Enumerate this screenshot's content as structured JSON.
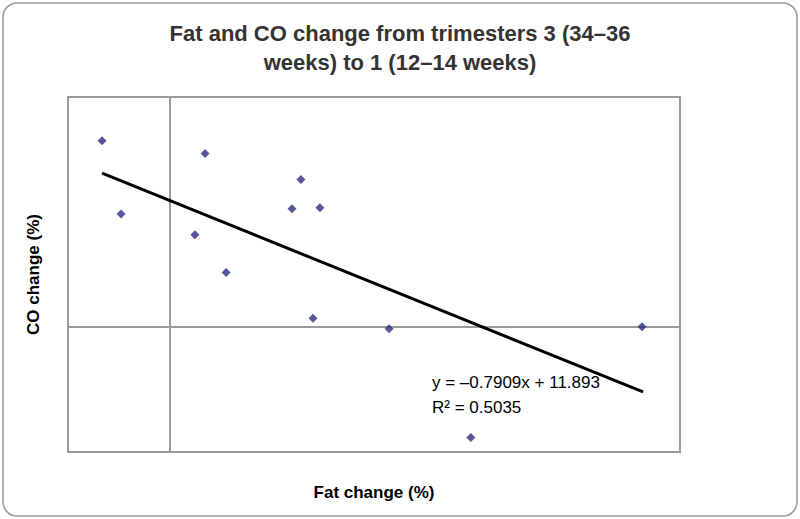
{
  "chart_data": {
    "type": "scatter",
    "title": "Fat and CO change from trimesters 3 (34–36\nweeks) to 1 (12–14 weeks)",
    "x_label": "Fat change (%)",
    "y_label": "CO change (%)",
    "x": [
      -3.33,
      -2.4,
      1.72,
      1.22,
      2.75,
      5.98,
      6.42,
      7.35,
      7.01,
      10.74,
      14.75,
      23.14
    ],
    "values": [
      17.8,
      10.8,
      16.6,
      8.8,
      5.2,
      11.3,
      14.1,
      11.4,
      0.8,
      -0.2,
      -10.6,
      0.0
    ],
    "color": "#2b2d7f",
    "marker": "diamond",
    "trend_line": {
      "x": [
        -3.33,
        23.19
      ],
      "y": [
        14.7,
        -6.25
      ],
      "color": "#000000",
      "line_style": "solid"
    },
    "annotations": [
      "y = –0.7909x + 11.893",
      "R² = 0.5035"
    ],
    "xlim": [
      -5,
      25
    ],
    "ylim": [
      -12,
      22
    ],
    "tick_labels": false,
    "grid": false
  }
}
